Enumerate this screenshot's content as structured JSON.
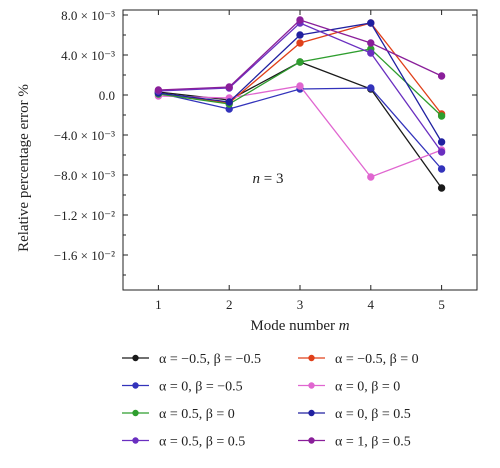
{
  "chart_data": {
    "type": "line",
    "xlabel": "Mode number m",
    "ylabel": "Relative percentage error %",
    "x": [
      1,
      2,
      3,
      4,
      5
    ],
    "xlim": [
      0.5,
      5.5
    ],
    "ylim": [
      -0.0195,
      0.0085
    ],
    "x_ticks": [
      "1",
      "2",
      "3",
      "4",
      "5"
    ],
    "y_ticks": [
      {
        "value": 0.008,
        "label": "8.0 × 10⁻³"
      },
      {
        "value": 0.004,
        "label": "4.0 × 10⁻³"
      },
      {
        "value": 0.0,
        "label": "0.0"
      },
      {
        "value": -0.004,
        "label": "−4.0 × 10⁻³"
      },
      {
        "value": -0.008,
        "label": "−8.0 × 10⁻³"
      },
      {
        "value": -0.012,
        "label": "−1.2 × 10⁻²"
      },
      {
        "value": -0.016,
        "label": "−1.6 × 10⁻²"
      }
    ],
    "annotation": "n = 3",
    "legend_position": "bottom",
    "grid": false,
    "series": [
      {
        "name": "α = −0.5, β = −0.5",
        "color": "#1a1a1a",
        "values": [
          0.0003,
          -0.0005,
          0.0033,
          0.0006,
          -0.0093
        ]
      },
      {
        "name": "α = −0.5, β = 0",
        "color": "#e0401a",
        "values": [
          0.0002,
          -0.0008,
          0.0052,
          0.0072,
          -0.0019
        ]
      },
      {
        "name": "α = 0, β = −0.5",
        "color": "#3333bb",
        "values": [
          0.0002,
          -0.0014,
          0.0006,
          0.0007,
          -0.0074
        ]
      },
      {
        "name": "α = 0, β = 0",
        "color": "#e066d0",
        "values": [
          -0.0001,
          -0.0003,
          0.0009,
          -0.0082,
          -0.0055
        ]
      },
      {
        "name": "α = 0.5, β = 0",
        "color": "#2e9e2e",
        "values": [
          0.0001,
          -0.0009,
          0.0033,
          0.0046,
          -0.0021
        ]
      },
      {
        "name": "α = 0, β = 0.5",
        "color": "#2020a0",
        "values": [
          0.0002,
          -0.0007,
          0.006,
          0.0072,
          -0.0047
        ]
      },
      {
        "name": "α = 0.5, β = 0.5",
        "color": "#6a2fc0",
        "values": [
          0.0004,
          0.0007,
          0.0072,
          0.0042,
          -0.0057
        ]
      },
      {
        "name": "α = 1, β = 0.5",
        "color": "#8a1f9a",
        "values": [
          0.0005,
          0.0008,
          0.0075,
          0.0052,
          0.0019
        ]
      }
    ]
  }
}
